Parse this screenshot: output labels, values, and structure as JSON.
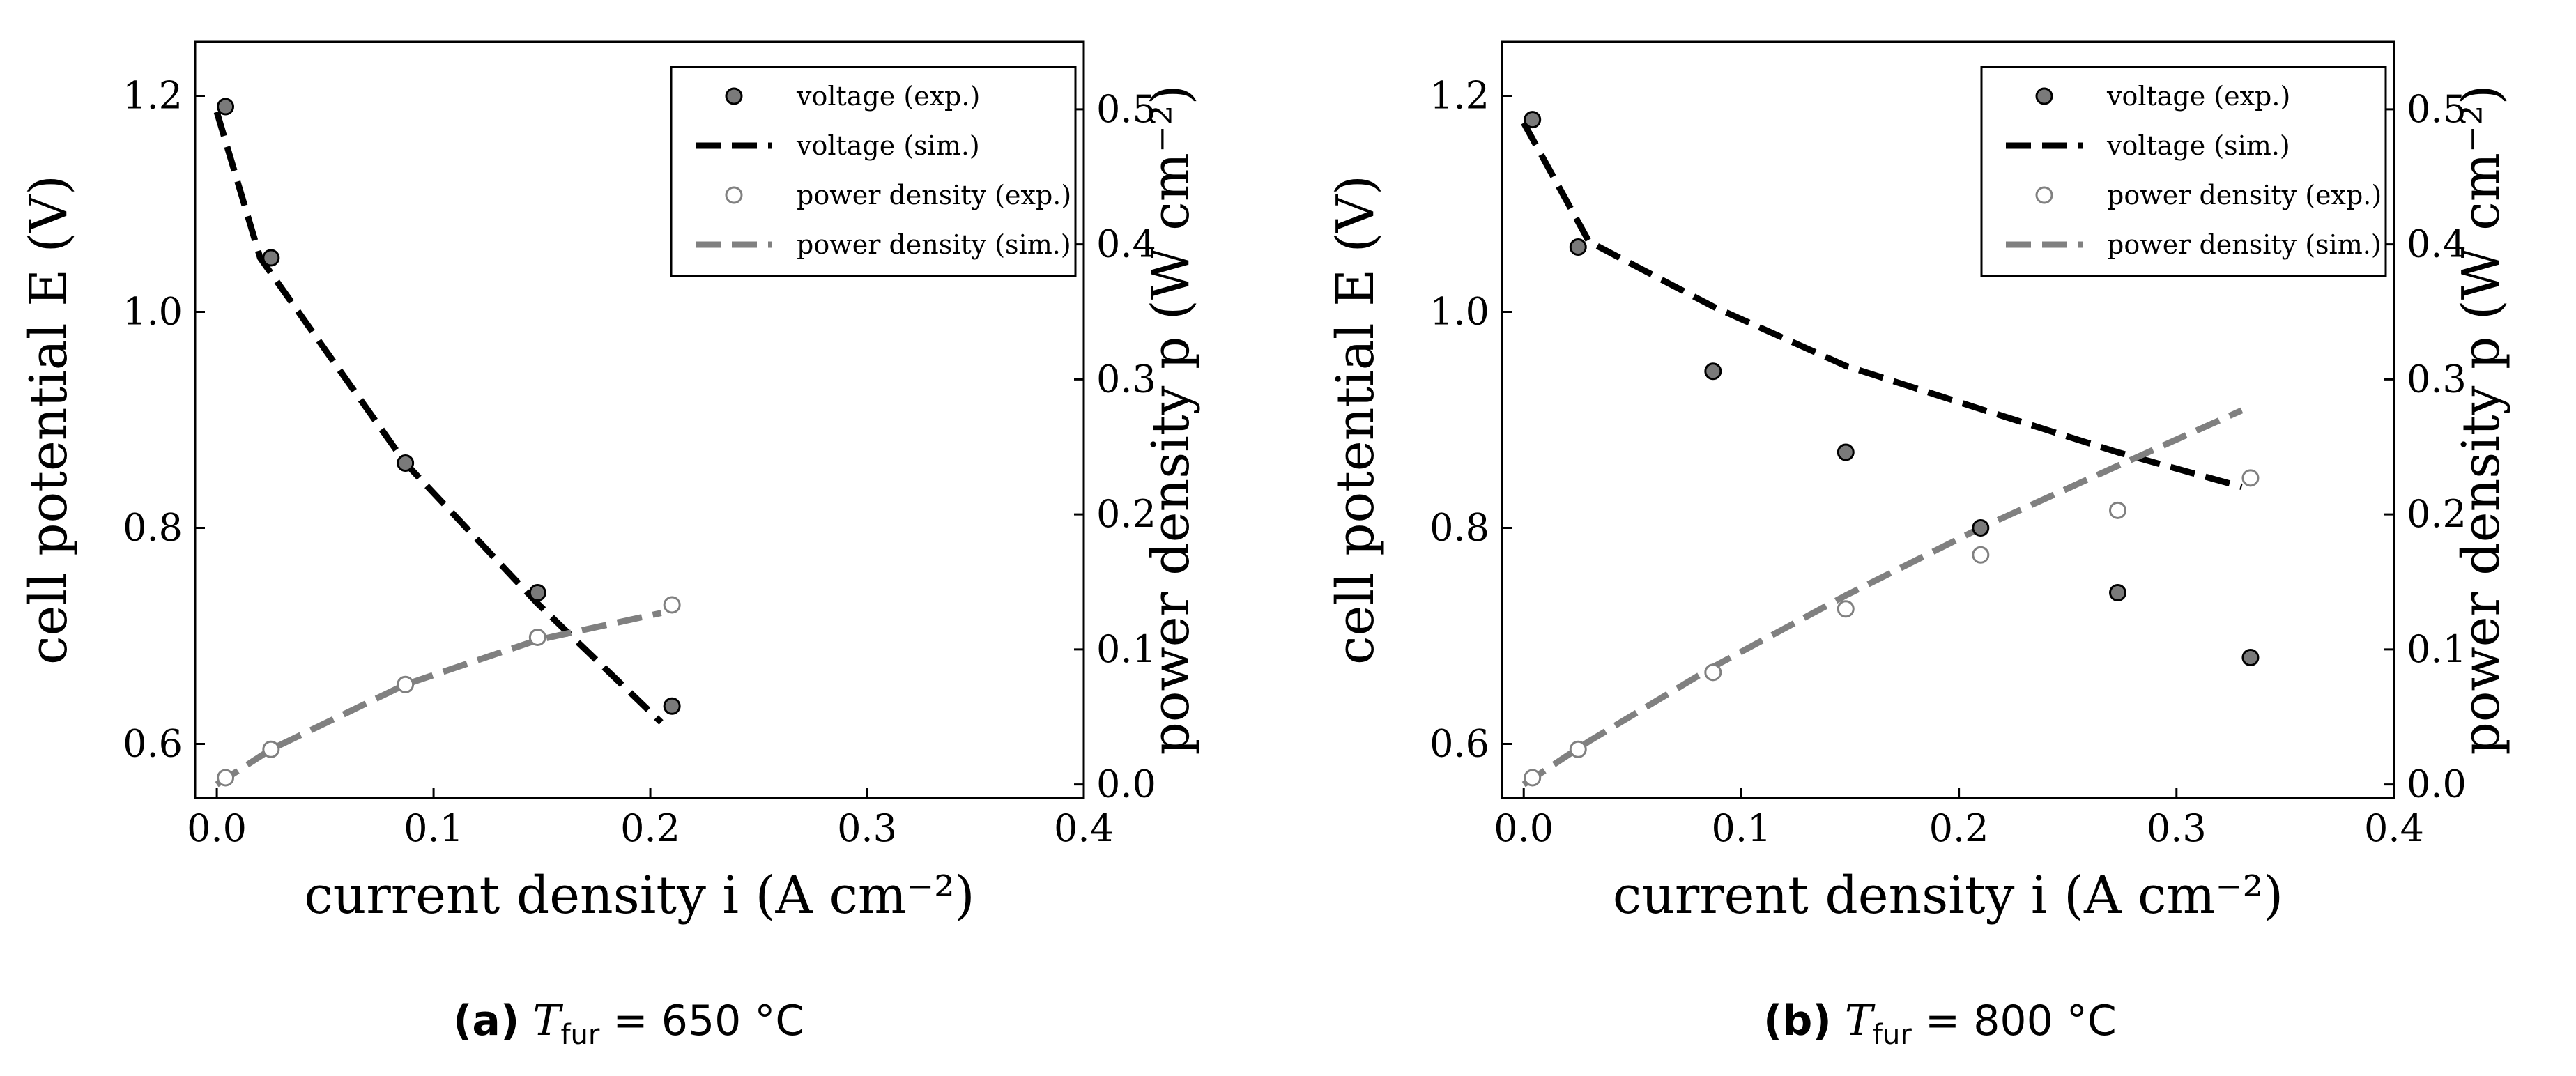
{
  "chart_data": [
    {
      "type": "line",
      "panel_label": "(a)",
      "caption_var": "T",
      "caption_sub": "fur",
      "caption_value": "= 650 °C",
      "xlabel": "current density i (A cm⁻²)",
      "ylabel": "cell potential E (V)",
      "y2label": "power density p (W cm⁻²)",
      "xlim": [
        -0.01,
        0.4
      ],
      "ylim": [
        0.55,
        1.25
      ],
      "y2lim": [
        -0.01,
        0.55
      ],
      "xticks": [
        0.0,
        0.1,
        0.2,
        0.3,
        0.4
      ],
      "xtick_labels": [
        "0.0",
        "0.1",
        "0.2",
        "0.3",
        "0.4"
      ],
      "yticks": [
        0.6,
        0.8,
        1.0,
        1.2
      ],
      "ytick_labels": [
        "0.6",
        "0.8",
        "1.0",
        "1.2"
      ],
      "y2ticks": [
        0.0,
        0.1,
        0.2,
        0.3,
        0.4,
        0.5
      ],
      "y2tick_labels": [
        "0.0",
        "0.1",
        "0.2",
        "0.3",
        "0.4",
        "0.5"
      ],
      "legend_position": "top-right",
      "series": [
        {
          "name": "voltage (exp.)",
          "kind": "marker-filled",
          "axis": "left",
          "color": "#7a7a7a",
          "x": [
            0.004,
            0.025,
            0.087,
            0.148,
            0.21
          ],
          "y": [
            1.19,
            1.05,
            0.86,
            0.74,
            0.635
          ]
        },
        {
          "name": "voltage (sim.)",
          "kind": "dashed-line",
          "axis": "left",
          "color": "#000000",
          "x": [
            0.0,
            0.02,
            0.087,
            0.148,
            0.205
          ],
          "y": [
            1.185,
            1.05,
            0.86,
            0.73,
            0.62
          ]
        },
        {
          "name": "power density (exp.)",
          "kind": "marker-open",
          "axis": "right",
          "color": "#808080",
          "x": [
            0.004,
            0.025,
            0.087,
            0.148,
            0.21
          ],
          "y": [
            0.005,
            0.026,
            0.074,
            0.109,
            0.133
          ]
        },
        {
          "name": "power density (sim.)",
          "kind": "dashed-line",
          "axis": "right",
          "color": "#808080",
          "x": [
            0.0,
            0.025,
            0.087,
            0.148,
            0.205
          ],
          "y": [
            0.0,
            0.026,
            0.074,
            0.107,
            0.127
          ]
        }
      ]
    },
    {
      "type": "line",
      "panel_label": "(b)",
      "caption_var": "T",
      "caption_sub": "fur",
      "caption_value": "= 800 °C",
      "xlabel": "current density i (A cm⁻²)",
      "ylabel": "cell potential E (V)",
      "y2label": "power density p (W cm⁻²)",
      "xlim": [
        -0.01,
        0.4
      ],
      "ylim": [
        0.55,
        1.25
      ],
      "y2lim": [
        -0.01,
        0.55
      ],
      "xticks": [
        0.0,
        0.1,
        0.2,
        0.3,
        0.4
      ],
      "xtick_labels": [
        "0.0",
        "0.1",
        "0.2",
        "0.3",
        "0.4"
      ],
      "yticks": [
        0.6,
        0.8,
        1.0,
        1.2
      ],
      "ytick_labels": [
        "0.6",
        "0.8",
        "1.0",
        "1.2"
      ],
      "y2ticks": [
        0.0,
        0.1,
        0.2,
        0.3,
        0.4,
        0.5
      ],
      "y2tick_labels": [
        "0.0",
        "0.1",
        "0.2",
        "0.3",
        "0.4",
        "0.5"
      ],
      "legend_position": "top-right",
      "series": [
        {
          "name": "voltage (exp.)",
          "kind": "marker-filled",
          "axis": "left",
          "color": "#7a7a7a",
          "x": [
            0.004,
            0.025,
            0.087,
            0.148,
            0.21,
            0.273,
            0.334
          ],
          "y": [
            1.178,
            1.06,
            0.945,
            0.87,
            0.8,
            0.74,
            0.68
          ]
        },
        {
          "name": "voltage (sim.)",
          "kind": "dashed-line",
          "axis": "left",
          "color": "#000000",
          "x": [
            0.0,
            0.03,
            0.087,
            0.148,
            0.21,
            0.273,
            0.33
          ],
          "y": [
            1.175,
            1.065,
            1.005,
            0.95,
            0.91,
            0.87,
            0.838
          ]
        },
        {
          "name": "power density (exp.)",
          "kind": "marker-open",
          "axis": "right",
          "color": "#808080",
          "x": [
            0.004,
            0.025,
            0.087,
            0.148,
            0.21,
            0.273,
            0.334
          ],
          "y": [
            0.005,
            0.026,
            0.083,
            0.13,
            0.17,
            0.203,
            0.227
          ]
        },
        {
          "name": "power density (sim.)",
          "kind": "dashed-line",
          "axis": "right",
          "color": "#808080",
          "x": [
            0.0,
            0.03,
            0.087,
            0.148,
            0.21,
            0.273,
            0.33
          ],
          "y": [
            0.0,
            0.032,
            0.087,
            0.14,
            0.19,
            0.236,
            0.277
          ]
        }
      ]
    }
  ]
}
